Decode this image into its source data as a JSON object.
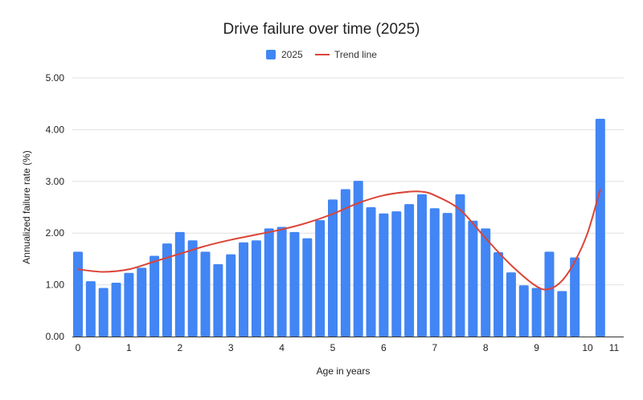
{
  "chart_data": {
    "type": "bar",
    "title": "Drive failure over time (2025)",
    "xlabel": "Age in years",
    "ylabel": "Annualized failure rate (%)",
    "ylim": [
      0,
      5
    ],
    "yticks": [
      "0.00",
      "1.00",
      "2.00",
      "3.00",
      "4.00",
      "5.00"
    ],
    "xticks": [
      "0",
      "1",
      "2",
      "3",
      "4",
      "5",
      "6",
      "7",
      "8",
      "9",
      "10",
      "11"
    ],
    "grid": true,
    "legend_placement": "top",
    "colors": {
      "bars": "#4285F4",
      "trend": "#DB4437",
      "grid": "#E0E0E0",
      "axis": "#333333"
    },
    "series": [
      {
        "name": "2025",
        "type": "bar",
        "x": [
          0,
          0.25,
          0.5,
          0.75,
          1,
          1.25,
          1.5,
          1.75,
          2,
          2.25,
          2.5,
          2.75,
          3,
          3.25,
          3.5,
          3.75,
          4,
          4.25,
          4.5,
          4.75,
          5,
          5.25,
          5.5,
          5.75,
          6,
          6.25,
          6.5,
          6.75,
          7,
          7.25,
          7.5,
          7.75,
          8,
          8.25,
          8.5,
          8.75,
          9,
          9.25,
          9.5,
          9.75,
          10.25
        ],
        "values": [
          1.64,
          1.07,
          0.94,
          1.04,
          1.23,
          1.33,
          1.56,
          1.8,
          2.02,
          1.86,
          1.64,
          1.4,
          1.59,
          1.82,
          1.86,
          2.09,
          2.12,
          2.02,
          1.9,
          2.25,
          2.65,
          2.85,
          3.01,
          2.5,
          2.38,
          2.42,
          2.56,
          2.75,
          2.48,
          2.39,
          2.75,
          2.24,
          2.09,
          1.63,
          1.24,
          0.99,
          0.94,
          1.64,
          0.88,
          1.53,
          4.21
        ]
      },
      {
        "name": "Trend line",
        "type": "line",
        "x": [
          0,
          0.5,
          1,
          1.5,
          2,
          2.5,
          3,
          3.5,
          4,
          4.5,
          5,
          5.5,
          6,
          6.5,
          6.75,
          7,
          7.5,
          8,
          8.5,
          9,
          9.25,
          9.5,
          9.75,
          10,
          10.25
        ],
        "values": [
          1.3,
          1.25,
          1.3,
          1.45,
          1.6,
          1.75,
          1.87,
          1.97,
          2.07,
          2.2,
          2.37,
          2.58,
          2.73,
          2.8,
          2.8,
          2.73,
          2.45,
          1.9,
          1.38,
          0.97,
          0.92,
          1.08,
          1.45,
          2.0,
          2.85
        ]
      }
    ]
  }
}
